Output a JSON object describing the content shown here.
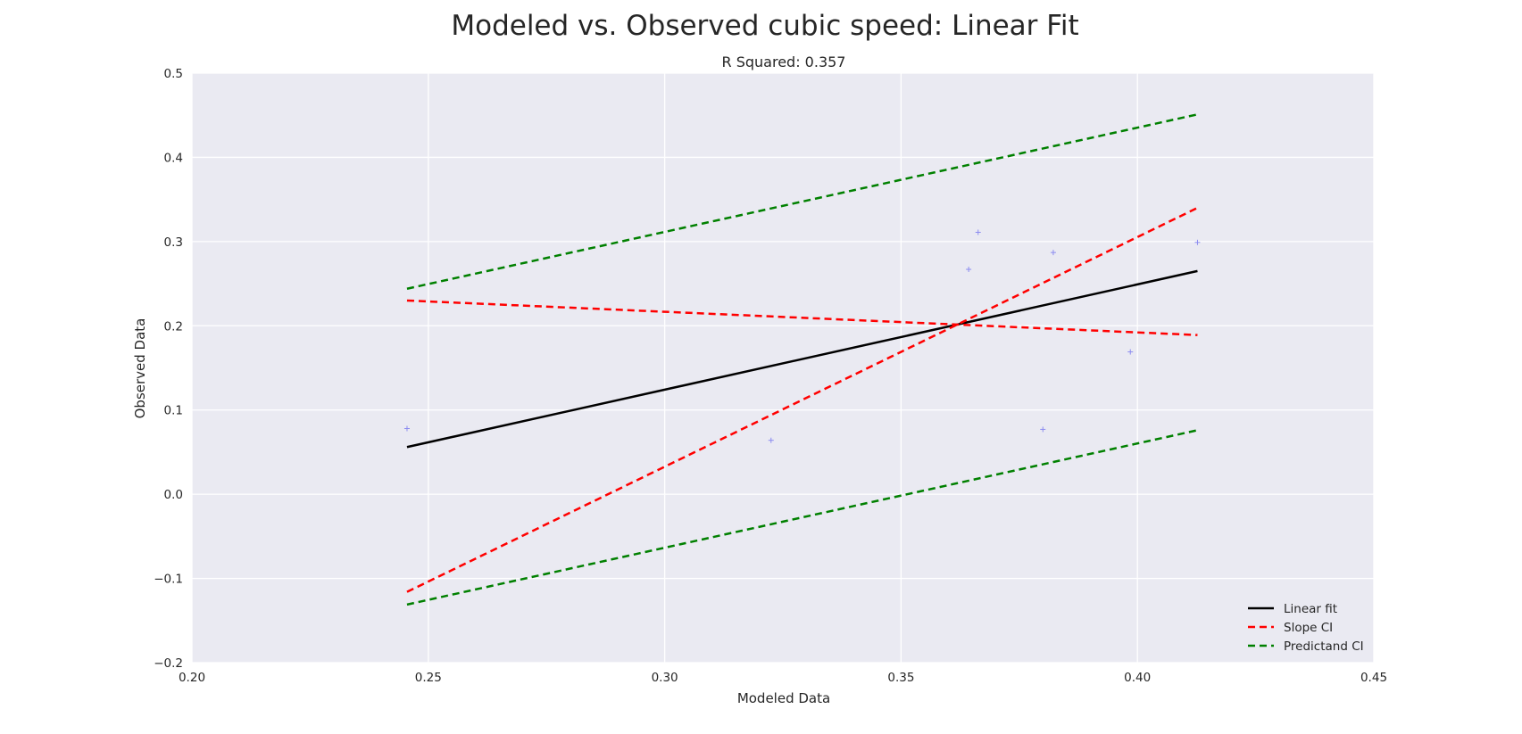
{
  "chart_data": {
    "type": "scatter",
    "title": "Modeled vs. Observed cubic speed: Linear Fit",
    "subtitle": "R Squared: 0.357",
    "xlabel": "Modeled Data",
    "ylabel": "Observed Data",
    "xlim": [
      0.2,
      0.45
    ],
    "ylim": [
      -0.2,
      0.5
    ],
    "xticks": [
      "0.20",
      "0.25",
      "0.30",
      "0.35",
      "0.40",
      "0.45"
    ],
    "yticks": [
      "−0.2",
      "−0.1",
      "0.0",
      "0.1",
      "0.2",
      "0.3",
      "0.4",
      "0.5"
    ],
    "xtick_values": [
      0.2,
      0.25,
      0.3,
      0.35,
      0.4,
      0.45
    ],
    "ytick_values": [
      -0.2,
      -0.1,
      0.0,
      0.1,
      0.2,
      0.3,
      0.4,
      0.5
    ],
    "grid": true,
    "background": "#eaeaf2",
    "legend_position": "bottom-right",
    "points": {
      "marker": "+",
      "color": "#8c8cf0",
      "x": [
        0.2455,
        0.3225,
        0.3643,
        0.3663,
        0.38,
        0.3822,
        0.3985,
        0.4127
      ],
      "y": [
        0.078,
        0.064,
        0.267,
        0.311,
        0.077,
        0.287,
        0.169,
        0.299
      ]
    },
    "series": [
      {
        "name": "Linear fit",
        "style": "solid",
        "color": "#000000",
        "x": [
          0.2455,
          0.4127
        ],
        "y": [
          0.056,
          0.265
        ]
      },
      {
        "name": "Slope CI",
        "style": "dashed",
        "color": "#ff0000",
        "x": [
          0.2455,
          0.4127
        ],
        "y": [
          -0.116,
          0.34
        ]
      },
      {
        "name": "",
        "style": "dashed",
        "color": "#ff0000",
        "x": [
          0.2455,
          0.4127
        ],
        "y": [
          0.23,
          0.189
        ]
      },
      {
        "name": "Predictand CI",
        "style": "dashed",
        "color": "#008000",
        "x": [
          0.2455,
          0.4127
        ],
        "y": [
          0.244,
          0.451
        ]
      },
      {
        "name": "",
        "style": "dashed",
        "color": "#008000",
        "x": [
          0.2455,
          0.4127
        ],
        "y": [
          -0.131,
          0.076
        ]
      }
    ],
    "legend": [
      {
        "label": "Linear fit",
        "color": "#000000",
        "style": "solid"
      },
      {
        "label": "Slope CI",
        "color": "#ff0000",
        "style": "dashed"
      },
      {
        "label": "Predictand CI",
        "color": "#008000",
        "style": "dashed"
      }
    ]
  }
}
